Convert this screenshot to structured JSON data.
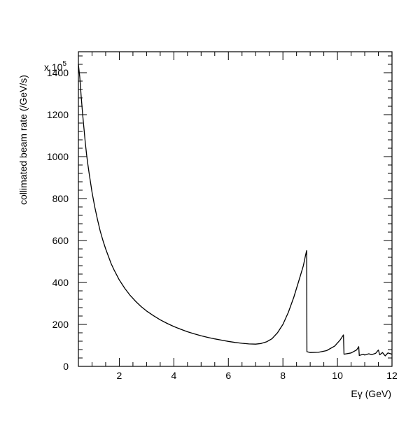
{
  "chart_data": {
    "type": "line",
    "title": "",
    "xlabel": "Eγ (GeV)",
    "ylabel": "collimated beam rate (/GeV/s)",
    "y_multiplier": "x 10",
    "y_multiplier_exponent": "5",
    "xlim": [
      0.5,
      12
    ],
    "ylim": [
      0,
      1500
    ],
    "xticks": [
      2,
      4,
      6,
      8,
      10,
      12
    ],
    "yticks": [
      0,
      200,
      400,
      600,
      800,
      1000,
      1200,
      1400
    ],
    "grid": false,
    "legend": "none",
    "series": [
      {
        "color": "#000000",
        "points": [
          [
            0.5,
            1440
          ],
          [
            0.55,
            1380
          ],
          [
            0.6,
            1290
          ],
          [
            0.65,
            1210
          ],
          [
            0.7,
            1140
          ],
          [
            0.75,
            1070
          ],
          [
            0.8,
            1010
          ],
          [
            0.85,
            960
          ],
          [
            0.9,
            915
          ],
          [
            1.0,
            830
          ],
          [
            1.1,
            760
          ],
          [
            1.2,
            700
          ],
          [
            1.3,
            645
          ],
          [
            1.4,
            600
          ],
          [
            1.5,
            560
          ],
          [
            1.6,
            525
          ],
          [
            1.7,
            490
          ],
          [
            1.8,
            462
          ],
          [
            2.0,
            412
          ],
          [
            2.2,
            372
          ],
          [
            2.4,
            338
          ],
          [
            2.6,
            310
          ],
          [
            2.8,
            285
          ],
          [
            3.0,
            264
          ],
          [
            3.25,
            242
          ],
          [
            3.5,
            222
          ],
          [
            3.75,
            205
          ],
          [
            4.0,
            190
          ],
          [
            4.25,
            177
          ],
          [
            4.5,
            165
          ],
          [
            4.75,
            155
          ],
          [
            5.0,
            146
          ],
          [
            5.25,
            138
          ],
          [
            5.5,
            131
          ],
          [
            5.75,
            125
          ],
          [
            6.0,
            119
          ],
          [
            6.25,
            114
          ],
          [
            6.5,
            110
          ],
          [
            6.75,
            107
          ],
          [
            7.0,
            106
          ],
          [
            7.2,
            109
          ],
          [
            7.4,
            117
          ],
          [
            7.6,
            132
          ],
          [
            7.8,
            160
          ],
          [
            8.0,
            200
          ],
          [
            8.2,
            258
          ],
          [
            8.4,
            330
          ],
          [
            8.6,
            415
          ],
          [
            8.75,
            480
          ],
          [
            8.83,
            530
          ],
          [
            8.87,
            552
          ],
          [
            8.88,
            70
          ],
          [
            9.0,
            66
          ],
          [
            9.3,
            67
          ],
          [
            9.6,
            75
          ],
          [
            9.9,
            97
          ],
          [
            10.1,
            126
          ],
          [
            10.22,
            150
          ],
          [
            10.24,
            58
          ],
          [
            10.5,
            64
          ],
          [
            10.7,
            78
          ],
          [
            10.78,
            94
          ],
          [
            10.8,
            52
          ],
          [
            10.95,
            58
          ],
          [
            11.0,
            54
          ],
          [
            11.15,
            60
          ],
          [
            11.25,
            56
          ],
          [
            11.4,
            62
          ],
          [
            11.5,
            78
          ],
          [
            11.55,
            55
          ],
          [
            11.65,
            66
          ],
          [
            11.75,
            50
          ],
          [
            11.85,
            64
          ],
          [
            12.0,
            58
          ]
        ]
      }
    ]
  }
}
